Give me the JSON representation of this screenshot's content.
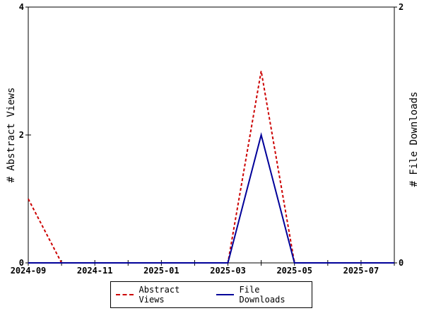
{
  "chart_data": {
    "type": "line",
    "x": [
      "2024-09",
      "2024-10",
      "2024-11",
      "2024-12",
      "2025-01",
      "2025-02",
      "2025-03",
      "2025-04",
      "2025-05",
      "2025-06",
      "2025-07",
      "2025-08"
    ],
    "x_tick_labels": [
      "2024-09",
      "2024-11",
      "2025-01",
      "2025-03",
      "2025-05",
      "2025-07"
    ],
    "xlim": [
      "2024-09",
      "2025-08"
    ],
    "ylabel": "# Abstract Views",
    "y2label": "# File Downloads",
    "ylim": [
      0,
      4
    ],
    "y2lim": [
      0,
      2
    ],
    "y_ticks": [
      "0",
      "2",
      "4"
    ],
    "y2_ticks": [
      "0",
      "2"
    ],
    "series": [
      {
        "name": "Abstract Views",
        "axis": "left",
        "color": "#cc0000",
        "style": "dashed",
        "values": [
          1,
          0,
          0,
          0,
          0,
          0,
          0,
          3,
          0,
          0,
          0,
          0
        ]
      },
      {
        "name": "File Downloads",
        "axis": "right",
        "color": "#000099",
        "style": "solid",
        "values": [
          0,
          0,
          0,
          0,
          0,
          0,
          0,
          1,
          0,
          0,
          0,
          0
        ]
      }
    ],
    "grid": false,
    "legend_position": "bottom"
  }
}
